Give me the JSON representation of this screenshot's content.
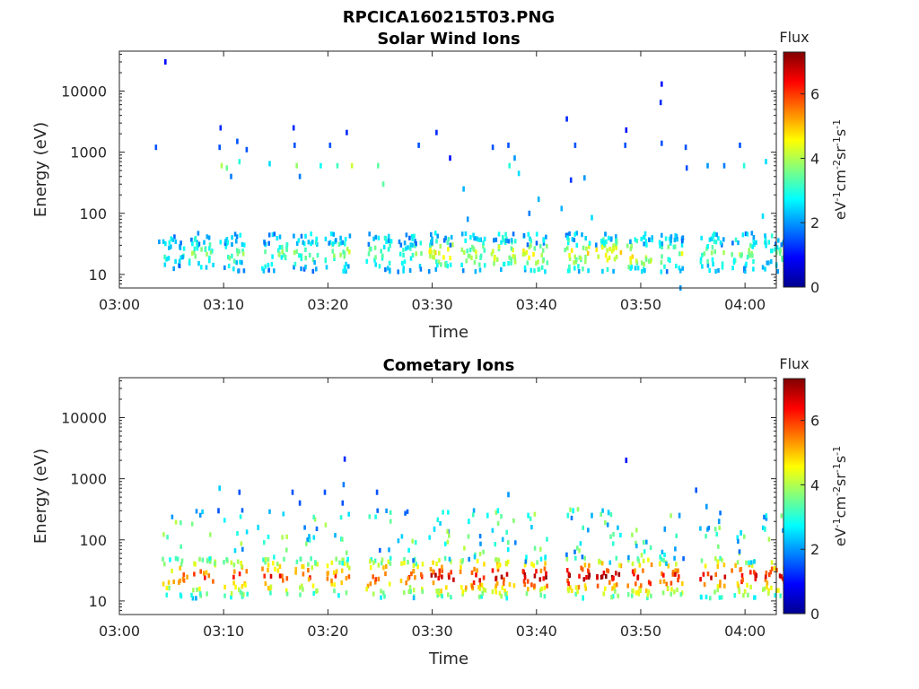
{
  "figure": {
    "suptitle": "RPCICA160215T03.PNG"
  },
  "chart_data": [
    {
      "type": "heatmap",
      "title": "Solar Wind Ions",
      "xlabel": "Time",
      "ylabel": "Energy (eV)",
      "x_ticks": [
        "03:00",
        "03:10",
        "03:20",
        "03:30",
        "03:40",
        "03:50",
        "04:00"
      ],
      "y_ticks": [
        "10",
        "100",
        "1000",
        "10000"
      ],
      "xlim_minutes_after_03_00": [
        0,
        63
      ],
      "ylim_eV": [
        6,
        45000
      ],
      "y_scale": "log",
      "colorbar": {
        "label": "Flux",
        "unit_label": "eV-1cm-2sr-1s-1",
        "ticks": [
          "0",
          "2",
          "4",
          "6"
        ],
        "range": [
          0,
          7.3
        ],
        "colormap": "jet"
      },
      "scans": [
        {
          "t": 3.7,
          "n": 20,
          "d": 3
        },
        {
          "t": 6.6,
          "n": 25,
          "d": 3.5
        },
        {
          "t": 9.5,
          "n": 25,
          "d": 3.5
        },
        {
          "t": 13.6,
          "n": 25,
          "d": 3.5
        },
        {
          "t": 16.6,
          "n": 25,
          "d": 3.5
        },
        {
          "t": 19.6,
          "n": 26,
          "d": 4
        },
        {
          "t": 23.6,
          "n": 25,
          "d": 3.5
        },
        {
          "t": 26.6,
          "n": 25,
          "d": 3.5
        },
        {
          "t": 29.6,
          "n": 30,
          "d": 4.5
        },
        {
          "t": 32.6,
          "n": 28,
          "d": 4
        },
        {
          "t": 35.6,
          "n": 30,
          "d": 4.5
        },
        {
          "t": 38.6,
          "n": 30,
          "d": 4.5
        },
        {
          "t": 42.6,
          "n": 30,
          "d": 4.5
        },
        {
          "t": 45.6,
          "n": 30,
          "d": 4.8
        },
        {
          "t": 48.6,
          "n": 30,
          "d": 4.8
        },
        {
          "t": 51.6,
          "n": 28,
          "d": 4
        },
        {
          "t": 55.6,
          "n": 26,
          "d": 3.8
        },
        {
          "t": 58.6,
          "n": 26,
          "d": 3.8
        },
        {
          "t": 61.6,
          "n": 25,
          "d": 3.5
        }
      ],
      "sparse": [
        {
          "t": 3.4,
          "e": 1200,
          "v": 1.5
        },
        {
          "t": 4.3,
          "e": 30000,
          "v": 1
        },
        {
          "t": 9.6,
          "e": 2500,
          "v": 1.2
        },
        {
          "t": 9.5,
          "e": 1200,
          "v": 1.5
        },
        {
          "t": 9.7,
          "e": 600,
          "v": 4
        },
        {
          "t": 10.2,
          "e": 550,
          "v": 3.5
        },
        {
          "t": 10.6,
          "e": 400,
          "v": 1.8
        },
        {
          "t": 11.2,
          "e": 1500,
          "v": 1.5
        },
        {
          "t": 11.4,
          "e": 700,
          "v": 3
        },
        {
          "t": 12.1,
          "e": 1100,
          "v": 1.5
        },
        {
          "t": 14.3,
          "e": 650,
          "v": 2.5
        },
        {
          "t": 16.6,
          "e": 2500,
          "v": 1.2
        },
        {
          "t": 16.7,
          "e": 1300,
          "v": 1.5
        },
        {
          "t": 16.9,
          "e": 600,
          "v": 3.8
        },
        {
          "t": 17.2,
          "e": 400,
          "v": 1.8
        },
        {
          "t": 19.2,
          "e": 600,
          "v": 2.8
        },
        {
          "t": 20.1,
          "e": 1300,
          "v": 1.5
        },
        {
          "t": 20.8,
          "e": 600,
          "v": 3.2
        },
        {
          "t": 21.7,
          "e": 2100,
          "v": 1.2
        },
        {
          "t": 22.2,
          "e": 600,
          "v": 4.2
        },
        {
          "t": 24.7,
          "e": 600,
          "v": 3.4
        },
        {
          "t": 25.2,
          "e": 300,
          "v": 3.4
        },
        {
          "t": 28.6,
          "e": 1300,
          "v": 1.5
        },
        {
          "t": 30.3,
          "e": 2100,
          "v": 1.2
        },
        {
          "t": 31.6,
          "e": 800,
          "v": 1
        },
        {
          "t": 32.9,
          "e": 250,
          "v": 2.2
        },
        {
          "t": 33.3,
          "e": 80,
          "v": 2
        },
        {
          "t": 35.7,
          "e": 1200,
          "v": 1.5
        },
        {
          "t": 37.2,
          "e": 1300,
          "v": 1.5
        },
        {
          "t": 37.3,
          "e": 600,
          "v": 3
        },
        {
          "t": 37.8,
          "e": 800,
          "v": 2
        },
        {
          "t": 38.2,
          "e": 450,
          "v": 2.5
        },
        {
          "t": 39.2,
          "e": 100,
          "v": 1.8
        },
        {
          "t": 40.1,
          "e": 170,
          "v": 2.2
        },
        {
          "t": 42.3,
          "e": 120,
          "v": 2.2
        },
        {
          "t": 42.8,
          "e": 3500,
          "v": 1.2
        },
        {
          "t": 43.2,
          "e": 350,
          "v": 1.3
        },
        {
          "t": 43.6,
          "e": 1300,
          "v": 1.5
        },
        {
          "t": 44.5,
          "e": 380,
          "v": 2
        },
        {
          "t": 45.2,
          "e": 85,
          "v": 2.5
        },
        {
          "t": 48.5,
          "e": 2300,
          "v": 1
        },
        {
          "t": 48.4,
          "e": 1300,
          "v": 1.5
        },
        {
          "t": 51.9,
          "e": 13000,
          "v": 1
        },
        {
          "t": 51.8,
          "e": 6500,
          "v": 1.2
        },
        {
          "t": 51.9,
          "e": 1400,
          "v": 1.5
        },
        {
          "t": 54.2,
          "e": 1200,
          "v": 1.5
        },
        {
          "t": 54.3,
          "e": 550,
          "v": 1.5
        },
        {
          "t": 56.3,
          "e": 600,
          "v": 2
        },
        {
          "t": 57.9,
          "e": 600,
          "v": 1.8
        },
        {
          "t": 59.4,
          "e": 1300,
          "v": 1.5
        },
        {
          "t": 59.8,
          "e": 600,
          "v": 3
        },
        {
          "t": 61.9,
          "e": 700,
          "v": 2.5
        },
        {
          "t": 61.6,
          "e": 90,
          "v": 2.5
        },
        {
          "t": 53.7,
          "e": 6,
          "v": 2
        }
      ]
    },
    {
      "type": "heatmap",
      "title": "Cometary Ions",
      "xlabel": "Time",
      "ylabel": "Energy (eV)",
      "x_ticks": [
        "03:00",
        "03:10",
        "03:20",
        "03:30",
        "03:40",
        "03:50",
        "04:00"
      ],
      "y_ticks": [
        "10",
        "100",
        "1000",
        "10000"
      ],
      "xlim_minutes_after_03_00": [
        0,
        63
      ],
      "ylim_eV": [
        6,
        45000
      ],
      "y_scale": "log",
      "colorbar": {
        "label": "Flux",
        "unit_label": "eV-1cm-2sr-1s-1",
        "ticks": [
          "0",
          "2",
          "4",
          "6"
        ],
        "range": [
          0,
          7.3
        ],
        "colormap": "jet"
      },
      "scans": [
        {
          "t": 4.0,
          "n": 22,
          "d": 5.8
        },
        {
          "t": 6.8,
          "n": 25,
          "d": 6
        },
        {
          "t": 9.8,
          "n": 28,
          "d": 6.2
        },
        {
          "t": 13.6,
          "n": 26,
          "d": 6.2
        },
        {
          "t": 16.6,
          "n": 26,
          "d": 6
        },
        {
          "t": 19.6,
          "n": 26,
          "d": 6
        },
        {
          "t": 23.6,
          "n": 26,
          "d": 6.2
        },
        {
          "t": 26.6,
          "n": 28,
          "d": 6
        },
        {
          "t": 29.6,
          "n": 32,
          "d": 6.8
        },
        {
          "t": 32.6,
          "n": 32,
          "d": 6.8
        },
        {
          "t": 35.6,
          "n": 32,
          "d": 6.8
        },
        {
          "t": 38.6,
          "n": 32,
          "d": 6.9
        },
        {
          "t": 42.6,
          "n": 32,
          "d": 6.9
        },
        {
          "t": 45.6,
          "n": 32,
          "d": 6.9
        },
        {
          "t": 48.6,
          "n": 32,
          "d": 6.9
        },
        {
          "t": 51.6,
          "n": 30,
          "d": 6.6
        },
        {
          "t": 55.6,
          "n": 28,
          "d": 6.5
        },
        {
          "t": 58.6,
          "n": 28,
          "d": 6.5
        },
        {
          "t": 61.6,
          "n": 28,
          "d": 6.4
        }
      ],
      "sparse": [
        {
          "t": 9.5,
          "e": 700,
          "v": 2.4
        },
        {
          "t": 9.4,
          "e": 300,
          "v": 1.5
        },
        {
          "t": 11.4,
          "e": 600,
          "v": 1.5
        },
        {
          "t": 13.2,
          "e": 160,
          "v": 2.5
        },
        {
          "t": 16.5,
          "e": 600,
          "v": 1.5
        },
        {
          "t": 17.2,
          "e": 400,
          "v": 1.5
        },
        {
          "t": 19.6,
          "e": 600,
          "v": 1.5
        },
        {
          "t": 21.4,
          "e": 800,
          "v": 1.8
        },
        {
          "t": 21.5,
          "e": 2100,
          "v": 1.2
        },
        {
          "t": 21.3,
          "e": 400,
          "v": 1.5
        },
        {
          "t": 24.6,
          "e": 600,
          "v": 1.5
        },
        {
          "t": 30.1,
          "e": 150,
          "v": 2.5
        },
        {
          "t": 33.4,
          "e": 200,
          "v": 2.8
        },
        {
          "t": 35.2,
          "e": 250,
          "v": 2.8
        },
        {
          "t": 36.2,
          "e": 300,
          "v": 2.8
        },
        {
          "t": 37.2,
          "e": 550,
          "v": 2
        },
        {
          "t": 39.1,
          "e": 250,
          "v": 2.8
        },
        {
          "t": 42.9,
          "e": 250,
          "v": 3
        },
        {
          "t": 43.4,
          "e": 300,
          "v": 2.8
        },
        {
          "t": 45.2,
          "e": 250,
          "v": 2.2
        },
        {
          "t": 46.8,
          "e": 280,
          "v": 2.4
        },
        {
          "t": 48.5,
          "e": 2000,
          "v": 1
        },
        {
          "t": 52.2,
          "e": 150,
          "v": 2
        },
        {
          "t": 53.6,
          "e": 250,
          "v": 2
        },
        {
          "t": 55.2,
          "e": 650,
          "v": 1.5
        },
        {
          "t": 56.2,
          "e": 350,
          "v": 2
        },
        {
          "t": 57.4,
          "e": 200,
          "v": 2
        },
        {
          "t": 59.5,
          "e": 130,
          "v": 2.5
        },
        {
          "t": 61.8,
          "e": 150,
          "v": 3
        }
      ]
    }
  ]
}
